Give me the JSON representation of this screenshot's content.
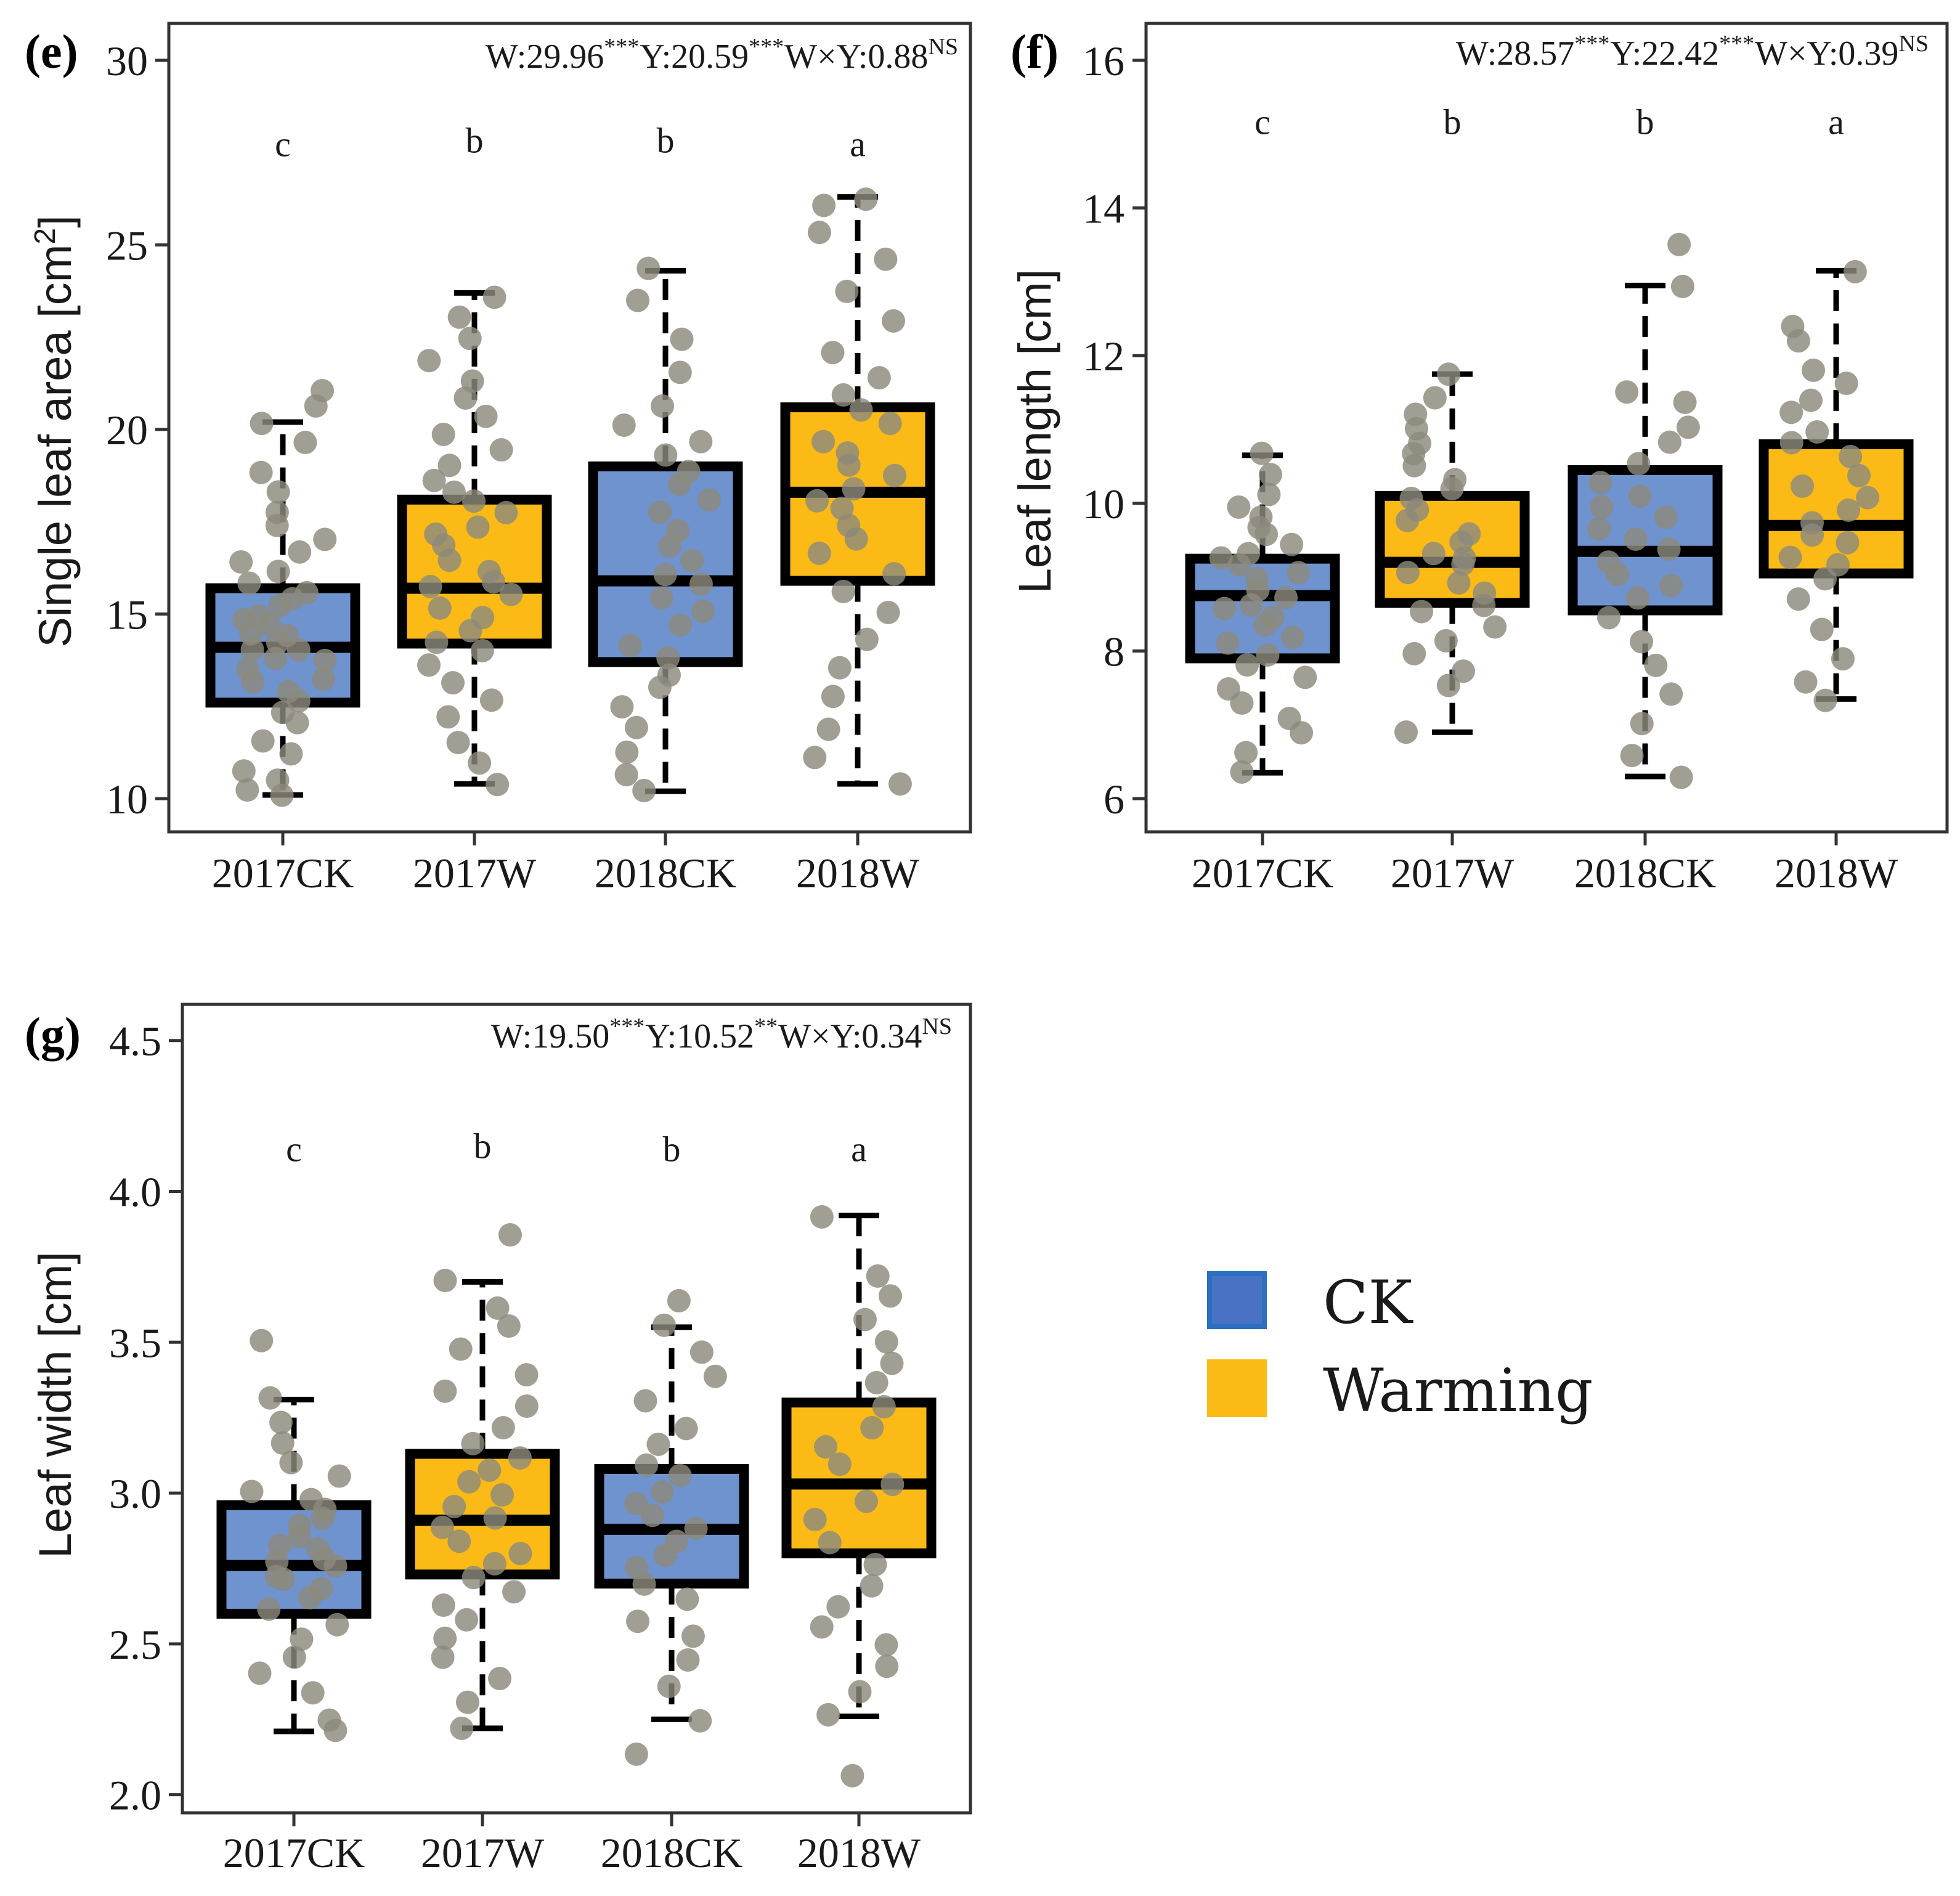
{
  "colors": {
    "ck_fill": "#6f93cf",
    "warming_fill": "#fbba16",
    "legend_ck_fill": "#4a72c4",
    "legend_ck_border": "#2a6fc0",
    "point": "#8c8a7c"
  },
  "legend": {
    "items": [
      {
        "label": "CK",
        "key": "ck"
      },
      {
        "label": "Warming",
        "key": "warming"
      }
    ]
  },
  "chart_data": [
    {
      "type": "box",
      "tag": "(e)",
      "ylabel": "Single leaf area [cm",
      "ylabel_sup": "2",
      "ylabel_tail": "]",
      "ylim": [
        9.1,
        31
      ],
      "yticks": [
        10,
        15,
        20,
        25,
        30
      ],
      "ytick_labels": [
        "10",
        "15",
        "20",
        "25",
        "30"
      ],
      "categories": [
        "2017CK",
        "2017W",
        "2018CK",
        "2018W"
      ],
      "treatments": [
        "ck",
        "warming",
        "ck",
        "warming"
      ],
      "stats": {
        "items": [
          {
            "text": "W:29.96",
            "sup": "***"
          },
          {
            "text": "Y:20.59",
            "sup": "***"
          },
          {
            "text": "W×Y:0.88",
            "sup": "NS"
          }
        ]
      },
      "letters": [
        "c",
        "b",
        "b",
        "a"
      ],
      "letter_y": [
        27.4,
        27.5,
        27.5,
        27.4
      ],
      "boxes": [
        {
          "whislo": 10.1,
          "q1": 12.6,
          "med": 14.1,
          "q3": 15.7,
          "whishi": 20.2
        },
        {
          "whislo": 10.4,
          "q1": 14.2,
          "med": 15.7,
          "q3": 18.1,
          "whishi": 23.7
        },
        {
          "whislo": 10.2,
          "q1": 13.7,
          "med": 15.9,
          "q3": 19.0,
          "whishi": 24.3
        },
        {
          "whislo": 10.4,
          "q1": 15.9,
          "med": 18.3,
          "q3": 20.6,
          "whishi": 26.3
        }
      ],
      "points": [
        [
          10.1,
          10.2,
          10.5,
          10.8,
          11.2,
          11.6,
          12.0,
          12.3,
          12.6,
          12.9,
          13.1,
          13.3,
          13.5,
          13.7,
          13.8,
          14.0,
          14.1,
          14.2,
          14.4,
          14.5,
          14.7,
          14.9,
          15.0,
          15.2,
          15.4,
          15.6,
          15.8,
          16.1,
          16.4,
          16.7,
          17.0,
          17.4,
          17.8,
          18.3,
          18.8,
          19.6,
          20.2,
          20.7,
          21.1
        ],
        [
          10.4,
          10.9,
          11.5,
          12.2,
          12.7,
          13.2,
          13.6,
          14.0,
          14.3,
          14.6,
          14.9,
          15.2,
          15.5,
          15.7,
          15.9,
          16.2,
          16.5,
          16.8,
          17.1,
          17.4,
          17.7,
          18.0,
          18.3,
          18.6,
          19.0,
          19.4,
          19.8,
          20.3,
          20.8,
          21.3,
          21.9,
          22.5,
          23.1,
          23.6
        ],
        [
          10.2,
          10.7,
          11.2,
          11.9,
          12.5,
          13.0,
          13.4,
          13.8,
          14.2,
          14.7,
          15.1,
          15.5,
          15.8,
          16.1,
          16.5,
          16.9,
          17.3,
          17.7,
          18.1,
          18.5,
          18.9,
          19.3,
          19.7,
          20.1,
          20.7,
          21.5,
          22.4,
          23.5,
          24.3
        ],
        [
          10.4,
          11.1,
          11.9,
          12.8,
          13.6,
          14.3,
          15.0,
          15.6,
          16.1,
          16.6,
          17.0,
          17.4,
          17.8,
          18.1,
          18.4,
          18.7,
          19.0,
          19.3,
          19.7,
          20.1,
          20.5,
          20.9,
          21.4,
          22.1,
          23.0,
          23.8,
          24.6,
          25.3,
          26.1,
          26.3
        ]
      ]
    },
    {
      "type": "box",
      "tag": "(f)",
      "ylabel": "Leaf length [cm]",
      "ylabel_sup": "",
      "ylabel_tail": "",
      "ylim": [
        5.55,
        16.5
      ],
      "yticks": [
        6,
        8,
        10,
        12,
        14,
        16
      ],
      "ytick_labels": [
        "6",
        "8",
        "10",
        "12",
        "14",
        "16"
      ],
      "categories": [
        "2017CK",
        "2017W",
        "2018CK",
        "2018W"
      ],
      "treatments": [
        "ck",
        "warming",
        "ck",
        "warming"
      ],
      "stats": {
        "items": [
          {
            "text": "W:28.57",
            "sup": "***"
          },
          {
            "text": "Y:22.42",
            "sup": "***"
          },
          {
            "text": "W×Y:0.39",
            "sup": "NS"
          }
        ]
      },
      "letters": [
        "c",
        "b",
        "b",
        "a"
      ],
      "letter_y": [
        15.0,
        15.0,
        15.0,
        15.0
      ],
      "boxes": [
        {
          "whislo": 6.35,
          "q1": 7.9,
          "med": 8.75,
          "q3": 9.25,
          "whishi": 10.65
        },
        {
          "whislo": 6.9,
          "q1": 8.65,
          "med": 9.2,
          "q3": 10.1,
          "whishi": 11.75
        },
        {
          "whislo": 6.3,
          "q1": 8.55,
          "med": 9.35,
          "q3": 10.45,
          "whishi": 12.95
        },
        {
          "whislo": 7.35,
          "q1": 9.05,
          "med": 9.7,
          "q3": 10.8,
          "whishi": 13.15
        }
      ],
      "points": [
        [
          6.35,
          6.6,
          6.9,
          7.1,
          7.3,
          7.5,
          7.65,
          7.8,
          7.95,
          8.1,
          8.2,
          8.35,
          8.45,
          8.55,
          8.65,
          8.75,
          8.85,
          8.95,
          9.05,
          9.15,
          9.25,
          9.35,
          9.45,
          9.55,
          9.65,
          9.8,
          9.95,
          10.1,
          10.4,
          10.65
        ],
        [
          6.9,
          7.5,
          7.7,
          7.95,
          8.15,
          8.35,
          8.5,
          8.65,
          8.8,
          8.95,
          9.05,
          9.15,
          9.25,
          9.35,
          9.45,
          9.6,
          9.75,
          9.9,
          10.05,
          10.2,
          10.35,
          10.5,
          10.65,
          10.8,
          11.0,
          11.2,
          11.45,
          11.75
        ],
        [
          6.3,
          6.6,
          7.0,
          7.4,
          7.8,
          8.15,
          8.45,
          8.7,
          8.9,
          9.05,
          9.2,
          9.35,
          9.5,
          9.65,
          9.8,
          9.95,
          10.1,
          10.3,
          10.55,
          10.8,
          11.05,
          11.35,
          11.5,
          12.95,
          13.5
        ],
        [
          7.35,
          7.6,
          7.9,
          8.3,
          8.7,
          8.95,
          9.15,
          9.3,
          9.45,
          9.6,
          9.75,
          9.9,
          10.05,
          10.2,
          10.4,
          10.6,
          10.8,
          11.0,
          11.2,
          11.4,
          11.6,
          11.8,
          12.2,
          12.4,
          13.15
        ]
      ]
    },
    {
      "type": "box",
      "tag": "(g)",
      "ylabel": "Leaf width [cm]",
      "ylabel_sup": "",
      "ylabel_tail": "",
      "ylim": [
        1.94,
        4.62
      ],
      "yticks": [
        2.0,
        2.5,
        3.0,
        3.5,
        4.0,
        4.5
      ],
      "ytick_labels": [
        "2.0",
        "2.5",
        "3.0",
        "3.5",
        "4.0",
        "4.5"
      ],
      "categories": [
        "2017CK",
        "2017W",
        "2018CK",
        "2018W"
      ],
      "treatments": [
        "ck",
        "warming",
        "ck",
        "warming"
      ],
      "stats": {
        "items": [
          {
            "text": "W:19.50",
            "sup": "***"
          },
          {
            "text": "Y:10.52",
            "sup": "**"
          },
          {
            "text": "W×Y:0.34",
            "sup": "NS"
          }
        ]
      },
      "letters": [
        "c",
        "b",
        "b",
        "a"
      ],
      "letter_y": [
        4.1,
        4.11,
        4.1,
        4.1
      ],
      "boxes": [
        {
          "whislo": 2.21,
          "q1": 2.6,
          "med": 2.76,
          "q3": 2.96,
          "whishi": 3.31
        },
        {
          "whislo": 2.22,
          "q1": 2.73,
          "med": 2.91,
          "q3": 3.13,
          "whishi": 3.7
        },
        {
          "whislo": 2.25,
          "q1": 2.7,
          "med": 2.88,
          "q3": 3.08,
          "whishi": 3.55
        },
        {
          "whislo": 2.26,
          "q1": 2.8,
          "med": 3.03,
          "q3": 3.3,
          "whishi": 3.92
        }
      ],
      "points": [
        [
          2.21,
          2.25,
          2.33,
          2.4,
          2.46,
          2.52,
          2.57,
          2.61,
          2.65,
          2.68,
          2.71,
          2.73,
          2.75,
          2.77,
          2.79,
          2.81,
          2.83,
          2.86,
          2.89,
          2.92,
          2.95,
          2.98,
          3.01,
          3.05,
          3.1,
          3.16,
          3.23,
          3.31,
          3.5
        ],
        [
          2.22,
          2.3,
          2.38,
          2.45,
          2.52,
          2.58,
          2.63,
          2.68,
          2.72,
          2.76,
          2.8,
          2.84,
          2.88,
          2.92,
          2.96,
          3.0,
          3.04,
          3.08,
          3.12,
          3.17,
          3.22,
          3.28,
          3.34,
          3.4,
          3.47,
          3.55,
          3.62,
          3.7,
          3.85
        ],
        [
          2.14,
          2.25,
          2.36,
          2.44,
          2.52,
          2.58,
          2.64,
          2.7,
          2.75,
          2.8,
          2.84,
          2.88,
          2.92,
          2.96,
          3.0,
          3.05,
          3.1,
          3.16,
          3.22,
          3.3,
          3.38,
          3.46,
          3.55,
          3.64
        ],
        [
          2.07,
          2.26,
          2.34,
          2.43,
          2.5,
          2.56,
          2.63,
          2.7,
          2.77,
          2.84,
          2.91,
          2.97,
          3.03,
          3.09,
          3.15,
          3.22,
          3.29,
          3.36,
          3.43,
          3.5,
          3.57,
          3.65,
          3.72,
          3.92
        ]
      ]
    }
  ]
}
